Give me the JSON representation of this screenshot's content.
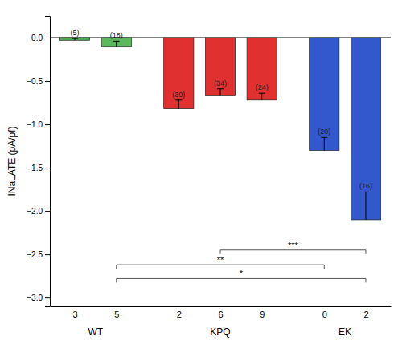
{
  "chart_data": {
    "type": "bar",
    "y_label": "INaLATE (pA/pf)",
    "groups": [
      {
        "name": "WT",
        "categories": [
          "3",
          "5"
        ]
      },
      {
        "name": "KPQ",
        "categories": [
          "2",
          "6",
          "9"
        ]
      },
      {
        "name": "EK",
        "categories": [
          "0",
          "2"
        ]
      }
    ],
    "values": [
      -0.03,
      -0.1,
      -0.82,
      -0.67,
      -0.72,
      -1.3,
      -2.1
    ],
    "errors": [
      0.02,
      0.06,
      0.1,
      0.08,
      0.08,
      0.15,
      0.32
    ],
    "colors": [
      "#4CAF50",
      "#5cb85c",
      "#e03030",
      "#e03030",
      "#e03030",
      "#3357cc",
      "#3357cc"
    ],
    "n_labels": [
      "(5)",
      "(18)",
      "(39)",
      "(34)",
      "(24)",
      "(20)",
      "(16)"
    ],
    "significance": [
      {
        "from": 1,
        "to": 5,
        "y": -2.62,
        "label": "**"
      },
      {
        "from": 1,
        "to": 6,
        "y": -2.78,
        "label": "*"
      },
      {
        "from": 3,
        "to": 6,
        "y": -2.45,
        "label": "***"
      }
    ],
    "ylim": [
      -3.1,
      0.25
    ],
    "yticks": [
      {
        "value": -3.0,
        "label": "−3.0"
      },
      {
        "value": -2.5,
        "label": "−2.5"
      },
      {
        "value": -2.0,
        "label": "−2.0"
      },
      {
        "value": -1.5,
        "label": "−1.5"
      },
      {
        "value": -1.0,
        "label": "−1.0"
      },
      {
        "value": -0.5,
        "label": "−0.5"
      },
      {
        "value": 0.0,
        "label": "0.0"
      }
    ],
    "grid": false
  }
}
